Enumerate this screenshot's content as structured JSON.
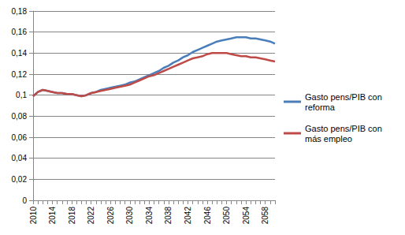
{
  "chart_data": {
    "type": "line",
    "categories": [
      2010,
      null,
      null,
      null,
      2014,
      null,
      null,
      null,
      2018,
      null,
      null,
      null,
      2022,
      null,
      null,
      null,
      2026,
      null,
      null,
      null,
      2030,
      null,
      null,
      null,
      2034,
      null,
      null,
      null,
      2038,
      null,
      null,
      null,
      2042,
      null,
      null,
      null,
      2046,
      null,
      null,
      null,
      2050,
      null,
      null,
      null,
      2054,
      null,
      null,
      null,
      2058,
      null,
      null
    ],
    "series": [
      {
        "name": "Gasto pens/PIB con reforma",
        "color": "#4a7ebb",
        "values": [
          0.099,
          0.103,
          0.105,
          0.104,
          0.103,
          0.102,
          0.102,
          0.101,
          0.101,
          0.1,
          0.099,
          0.1,
          0.102,
          0.103,
          0.105,
          0.106,
          0.107,
          0.108,
          0.109,
          0.11,
          0.112,
          0.113,
          0.115,
          0.117,
          0.119,
          0.121,
          0.123,
          0.126,
          0.128,
          0.131,
          0.133,
          0.136,
          0.138,
          0.141,
          0.143,
          0.145,
          0.147,
          0.149,
          0.151,
          0.152,
          0.153,
          0.154,
          0.155,
          0.155,
          0.155,
          0.154,
          0.154,
          0.153,
          0.152,
          0.151,
          0.149
        ]
      },
      {
        "name": "Gasto pens/PIB con más empleo",
        "color": "#be4b48",
        "values": [
          0.099,
          0.103,
          0.105,
          0.104,
          0.103,
          0.102,
          0.102,
          0.101,
          0.101,
          0.1,
          0.099,
          0.1,
          0.102,
          0.103,
          0.104,
          0.105,
          0.106,
          0.107,
          0.108,
          0.109,
          0.11,
          0.112,
          0.114,
          0.116,
          0.118,
          0.119,
          0.121,
          0.123,
          0.125,
          0.127,
          0.129,
          0.131,
          0.133,
          0.135,
          0.136,
          0.137,
          0.139,
          0.14,
          0.14,
          0.14,
          0.14,
          0.139,
          0.138,
          0.137,
          0.137,
          0.136,
          0.136,
          0.135,
          0.134,
          0.133,
          0.132
        ]
      }
    ],
    "ylim": [
      0,
      0.18
    ],
    "yticks": [
      0,
      {
        "value": 0.02,
        "label": "0,02"
      },
      {
        "value": 0.04,
        "label": "0,04"
      },
      {
        "value": 0.06,
        "label": "0,06"
      },
      {
        "value": 0.08,
        "label": "0,08"
      },
      {
        "value": 0.1,
        "label": "0,1"
      },
      {
        "value": 0.12,
        "label": "0,12"
      },
      {
        "value": 0.14,
        "label": "0,14"
      },
      {
        "value": 0.16,
        "label": "0,16"
      },
      {
        "value": 0.18,
        "label": "0,18"
      }
    ],
    "grid": true,
    "legend": "right"
  }
}
